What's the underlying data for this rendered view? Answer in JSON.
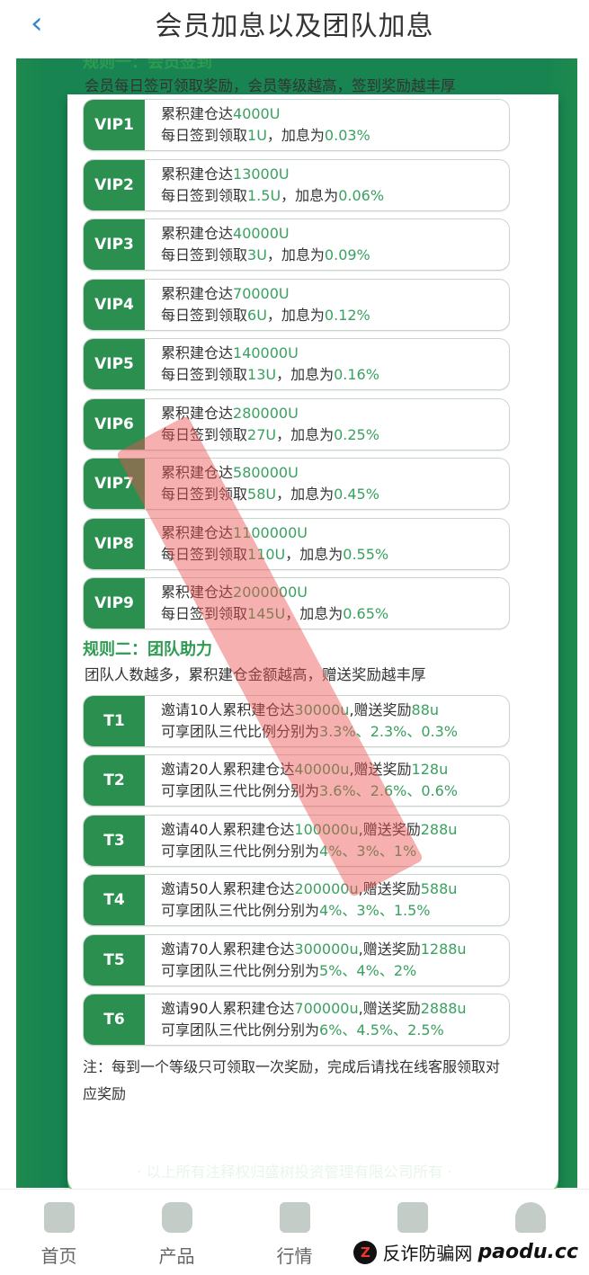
{
  "header": {
    "title": "会员加息以及团队加息",
    "back_icon": "chevron-left-icon"
  },
  "colors": {
    "brand_green": "#178451",
    "label_green": "#2b8f50",
    "accent_green": "#3aa160"
  },
  "rule1": {
    "title": "规则一：会员签到",
    "desc": "会员每日签可领取奖励，会员等级越高，签到奖励越丰厚",
    "line1_prefix": "累积建仓达",
    "line2_prefix": "每日签到领取",
    "line2_mid": "，加息为",
    "items": [
      {
        "level": "VIP1",
        "total": "4000U",
        "daily": "1U",
        "rate": "0.03%"
      },
      {
        "level": "VIP2",
        "total": "13000U",
        "daily": "1.5U",
        "rate": "0.06%"
      },
      {
        "level": "VIP3",
        "total": "40000U",
        "daily": "3U",
        "rate": "0.09%"
      },
      {
        "level": "VIP4",
        "total": "70000U",
        "daily": "6U",
        "rate": "0.12%"
      },
      {
        "level": "VIP5",
        "total": "140000U",
        "daily": "13U",
        "rate": "0.16%"
      },
      {
        "level": "VIP6",
        "total": "280000U",
        "daily": "27U",
        "rate": "0.25%"
      },
      {
        "level": "VIP7",
        "total": "580000U",
        "daily": "58U",
        "rate": "0.45%"
      },
      {
        "level": "VIP8",
        "total": "1100000U",
        "daily": "110U",
        "rate": "0.55%"
      },
      {
        "level": "VIP9",
        "total": "2000000U",
        "daily": "145U",
        "rate": "0.65%"
      }
    ]
  },
  "rule2": {
    "title": "规则二：团队助力",
    "desc": "团队人数越多，累积建仓金额越高，赠送奖励越丰厚",
    "line1_a": "邀请",
    "line1_b": "人累积建仓达",
    "line1_c": ",赠送奖励",
    "line2_prefix": "可享团队三代比例分别为",
    "sep": "、",
    "items": [
      {
        "level": "T1",
        "people": "10",
        "total": "30000u",
        "bonus": "88u",
        "ratios": [
          "3.3%",
          "2.3%",
          "0.3%"
        ]
      },
      {
        "level": "T2",
        "people": "20",
        "total": "40000u",
        "bonus": "128u",
        "ratios": [
          "3.6%",
          "2.6%",
          "0.6%"
        ]
      },
      {
        "level": "T3",
        "people": "40",
        "total": "100000u",
        "bonus": "288u",
        "ratios": [
          "4%",
          "3%",
          "1%"
        ]
      },
      {
        "level": "T4",
        "people": "50",
        "total": "200000u",
        "bonus": "588u",
        "ratios": [
          "4%",
          "3%",
          "1.5%"
        ]
      },
      {
        "level": "T5",
        "people": "70",
        "total": "300000u",
        "bonus": "1288u",
        "ratios": [
          "5%",
          "4%",
          "2%"
        ]
      },
      {
        "level": "T6",
        "people": "90",
        "total": "700000u",
        "bonus": "2888u",
        "ratios": [
          "6%",
          "4.5%",
          "2.5%"
        ]
      }
    ]
  },
  "note": "注：每到一个等级只可领取一次奖励，完成后请找在线客服领取对应奖励",
  "copyright": "· 以上所有注释权归盛树投资管理有限公司所有 ·",
  "nav": [
    {
      "label": "首页",
      "icon": "home-icon"
    },
    {
      "label": "产品",
      "icon": "product-icon"
    },
    {
      "label": "行情",
      "icon": "chart-icon"
    },
    {
      "label": "",
      "icon": "news-icon"
    },
    {
      "label": "",
      "icon": "user-icon"
    }
  ],
  "watermark": {
    "logo": "Z",
    "text": "反诈防骗网",
    "url": "paodu.cc"
  }
}
